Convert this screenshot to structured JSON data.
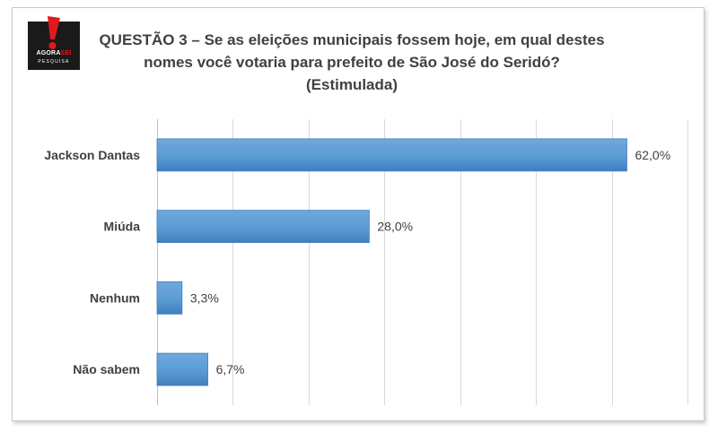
{
  "logo": {
    "brand_main": "AGORA",
    "brand_accent": "SEI",
    "brand_sub": "PESQUISA"
  },
  "title_lines": [
    "QUESTÃO 3 – Se as eleições municipais fossem hoje, em qual destes",
    "nomes você votaria para prefeito de São José do Seridó?",
    "(Estimulada)"
  ],
  "colors": {
    "bar": "#5b9bd5",
    "bar_dark": "#3f7fbf",
    "gridline": "#d9d9d9",
    "text": "#404040",
    "logo_red": "#e0191b"
  },
  "chart_data": {
    "type": "bar",
    "orientation": "horizontal",
    "title": "QUESTÃO 3 – Se as eleições municipais fossem hoje, em qual destes nomes você votaria para prefeito de São José do Seridó? (Estimulada)",
    "categories": [
      "Jackson Dantas",
      "Miúda",
      "Nenhum",
      "Não sabem"
    ],
    "values": [
      62.0,
      28.0,
      3.3,
      6.7
    ],
    "data_labels": [
      "62,0%",
      "28,0%",
      "3,3%",
      "6,7%"
    ],
    "xlim": [
      0,
      70
    ],
    "grid": true,
    "legend": "none"
  }
}
